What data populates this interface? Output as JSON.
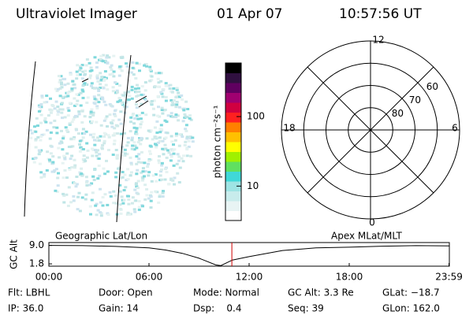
{
  "header": {
    "title": "Ultraviolet Imager",
    "date": "01 Apr 07",
    "time": "10:57:56 UT"
  },
  "colorbar": {
    "label": "photon cm⁻²s⁻¹",
    "log_scale": true,
    "lim": [
      3.2,
      590
    ],
    "ticks": [
      10,
      100
    ]
  },
  "polar": {
    "mlt_labels": [
      "12",
      "6",
      "0",
      "18"
    ],
    "lat_circles": [
      80,
      70,
      60
    ],
    "lat_lim": [
      90,
      50
    ]
  },
  "altitude": {
    "left_label": "Geographic Lat/Lon",
    "right_label": "Apex MLat/MLT",
    "ylabel": "GC Alt",
    "ylim": [
      0.9,
      10.1
    ],
    "yticks": [
      {
        "value": 9,
        "label": "9.0"
      },
      1.8
    ],
    "xlim": [
      0,
      24
    ],
    "xticks": [
      {
        "value": 0,
        "label": "00:00"
      },
      {
        "value": 6,
        "label": "06:00"
      },
      {
        "value": 12,
        "label": "12:00"
      },
      {
        "value": 18,
        "label": "18:00"
      },
      {
        "value": 23.98,
        "label": "23:59"
      }
    ],
    "x": [
      0,
      2,
      4,
      6,
      7,
      8,
      9,
      10,
      10.3,
      11,
      12,
      14,
      16,
      18,
      20,
      22,
      24
    ],
    "values": [
      9.0,
      8.9,
      8.6,
      8.0,
      7.2,
      5.9,
      4.0,
      1.4,
      1.1,
      3.3,
      4.6,
      7.0,
      8.0,
      8.3,
      8.7,
      8.9,
      8.8
    ],
    "current_time": 10.9656,
    "current_color": "#d00000"
  },
  "info": [
    [
      "Flt: LBHL",
      "Door: Open",
      "Mode: Normal",
      "GC Alt: 3.3 Re",
      "GLat: −18.7"
    ],
    [
      "IP: 36.0",
      "Gain: 14",
      "Dsp:    0.4",
      "Seq: 39",
      "GLon: 162.0"
    ]
  ]
}
